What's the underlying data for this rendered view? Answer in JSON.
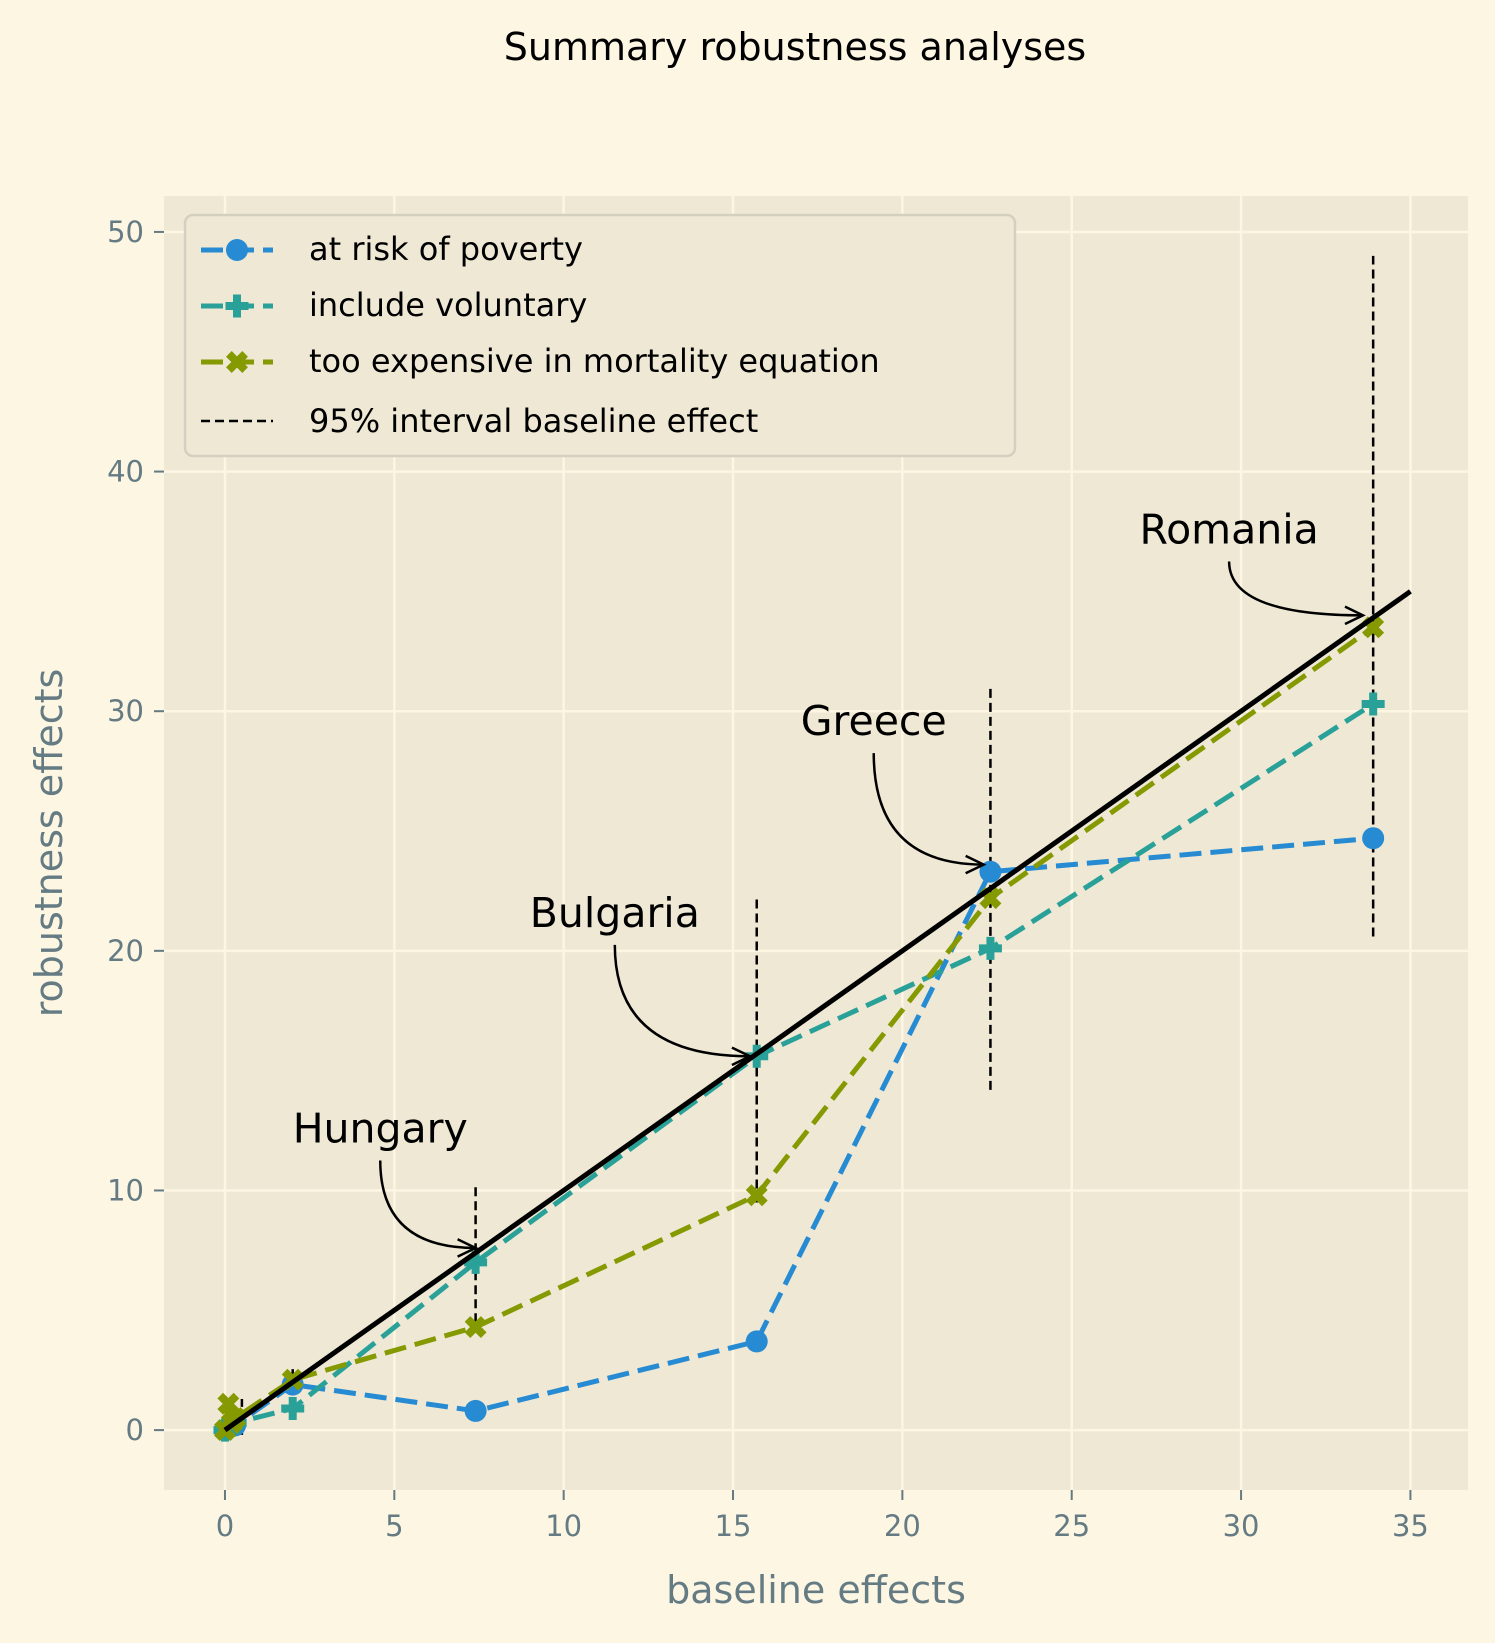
{
  "chart_data": {
    "type": "line",
    "title": "Summary robustness analyses",
    "xlabel": "baseline effects",
    "ylabel": "robustness effects",
    "xlim": [
      -1.8,
      36.7
    ],
    "ylim": [
      -2.5,
      51.5
    ],
    "xticks": [
      "0",
      "5",
      "10",
      "15",
      "20",
      "25",
      "30",
      "35"
    ],
    "yticks": [
      "0",
      "10",
      "20",
      "30",
      "40",
      "50"
    ],
    "grid": true,
    "legend_position": "top-left",
    "x": [
      0.0,
      0.1,
      0.2,
      0.3,
      2.0,
      7.4,
      15.7,
      22.6,
      33.9
    ],
    "series": [
      {
        "name": "at risk of poverty",
        "color": "#268bd2",
        "marker": "circle",
        "values": [
          0.0,
          0.1,
          0.2,
          0.2,
          1.9,
          0.8,
          3.7,
          23.3,
          24.7
        ]
      },
      {
        "name": "include voluntary",
        "color": "#2aa198",
        "marker": "plus",
        "values": [
          0.0,
          0.1,
          0.2,
          0.3,
          0.9,
          7.0,
          15.6,
          20.1,
          30.3
        ]
      },
      {
        "name": "too expensive in mortality equation",
        "color": "#859900",
        "marker": "x",
        "values": [
          0.0,
          1.1,
          0.3,
          0.5,
          2.1,
          4.3,
          9.8,
          22.2,
          33.5
        ]
      }
    ],
    "identity_line": {
      "x": [
        0,
        35
      ],
      "y": [
        0,
        35
      ],
      "color": "#000000"
    },
    "intervals": {
      "name": "95% interval baseline effect",
      "color": "#000000",
      "items": [
        {
          "x": 0.5,
          "low": -0.2,
          "high": 1.3
        },
        {
          "x": 2.0,
          "low": 1.0,
          "high": 2.6
        },
        {
          "x": 7.4,
          "low": 4.5,
          "high": 10.3
        },
        {
          "x": 15.7,
          "low": 9.5,
          "high": 22.3
        },
        {
          "x": 22.6,
          "low": 14.2,
          "high": 31.0
        },
        {
          "x": 33.9,
          "low": 20.6,
          "high": 49.0
        }
      ]
    },
    "annotations": [
      {
        "text": "Hungary",
        "text_x": 2.0,
        "text_y": 12.0,
        "point_x": 7.4,
        "point_y": 7.6
      },
      {
        "text": "Bulgaria",
        "text_x": 9.0,
        "text_y": 21.0,
        "point_x": 15.5,
        "point_y": 15.6
      },
      {
        "text": "Greece",
        "text_x": 17.0,
        "text_y": 29.0,
        "point_x": 22.4,
        "point_y": 23.6
      },
      {
        "text": "Romania",
        "text_x": 27.0,
        "text_y": 37.0,
        "point_x": 33.6,
        "point_y": 34.0
      }
    ],
    "colors": {
      "figure_bg": "#fdf6e3",
      "axes_bg": "#eee8d5",
      "grid": "#fdf6e3",
      "tick_text": "#657b83",
      "legend_bg": "#eee8d5",
      "legend_edge": "#d4cfbf"
    }
  }
}
